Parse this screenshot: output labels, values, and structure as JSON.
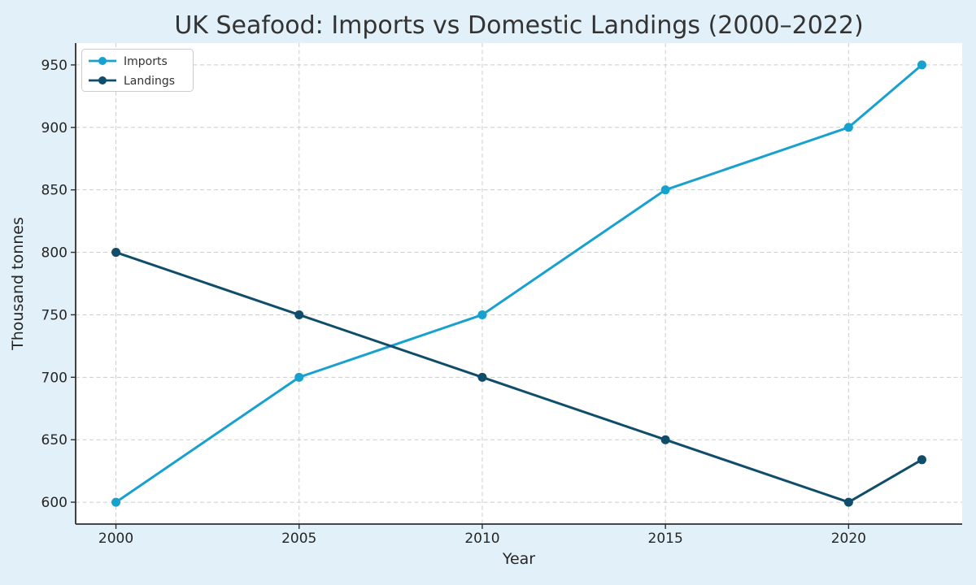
{
  "page": {
    "background": "#e2f1f9",
    "plot_background": "#ffffff",
    "grid_color": "#cccccc",
    "axis_color": "#2e2e2e",
    "text_color": "#262626"
  },
  "chart_data": {
    "type": "line",
    "title": "UK Seafood: Imports vs Domestic Landings (2000–2022)",
    "xlabel": "Year",
    "ylabel": "Thousand tonnes",
    "x": [
      2000,
      2005,
      2010,
      2015,
      2020,
      2022
    ],
    "series": [
      {
        "name": "Imports",
        "color": "#17a1cf",
        "values": [
          600,
          700,
          750,
          850,
          900,
          950
        ]
      },
      {
        "name": "Landings",
        "color": "#0f4d6a",
        "values": [
          800,
          750,
          700,
          650,
          600,
          634
        ]
      }
    ],
    "xticks": [
      2000,
      2005,
      2010,
      2015,
      2020
    ],
    "yticks": [
      600,
      650,
      700,
      750,
      800,
      850,
      900,
      950
    ],
    "xlim": [
      1998.9,
      2023.1
    ],
    "ylim": [
      582.5,
      967.5
    ],
    "grid": true,
    "grid_style": "dashed",
    "marker": "circle",
    "legend": {
      "position": "upper-left"
    }
  }
}
